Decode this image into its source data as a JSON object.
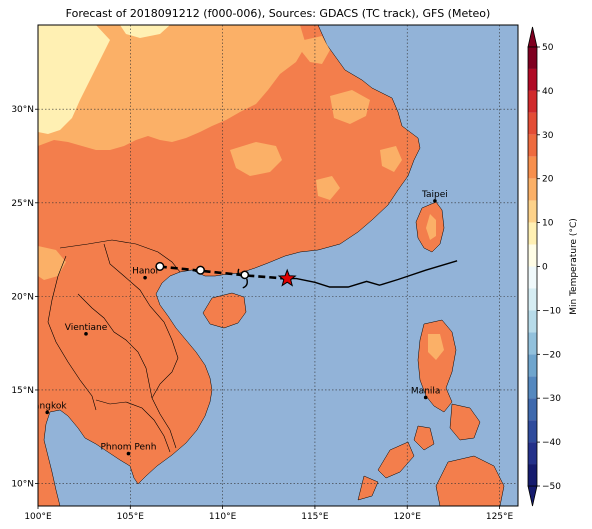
{
  "title": "Forecast of 2018091212 (f000-006), Sources: GDACS (TC track), GFS (Meteo)",
  "map": {
    "lon_range": [
      100,
      126
    ],
    "lat_range": [
      8.8,
      34.5
    ],
    "lon_ticks": [
      {
        "value": 100,
        "label": "100°E"
      },
      {
        "value": 105,
        "label": "105°E"
      },
      {
        "value": 110,
        "label": "110°E"
      },
      {
        "value": 115,
        "label": "115°E"
      },
      {
        "value": 120,
        "label": "120°E"
      },
      {
        "value": 125,
        "label": "125°E"
      }
    ],
    "lat_ticks": [
      {
        "value": 10,
        "label": "10°N"
      },
      {
        "value": 15,
        "label": "15°N"
      },
      {
        "value": 20,
        "label": "20°N"
      },
      {
        "value": 25,
        "label": "25°N"
      },
      {
        "value": 30,
        "label": "30°N"
      }
    ],
    "gridlines": true,
    "ocean_color": "#92b3d8"
  },
  "cities": [
    {
      "name": "Hanoi",
      "lon": 105.8,
      "lat": 21.0
    },
    {
      "name": "Vientiane",
      "lon": 102.6,
      "lat": 18.0
    },
    {
      "name": "Bangkok",
      "lon": 100.5,
      "lat": 13.8
    },
    {
      "name": "Phnom Penh",
      "lon": 104.9,
      "lat": 11.6
    },
    {
      "name": "Manila",
      "lon": 121.0,
      "lat": 14.6
    },
    {
      "name": "Taipei",
      "lon": 121.5,
      "lat": 25.1
    }
  ],
  "track": {
    "observed": [
      [
        122.7,
        21.9
      ],
      [
        121.0,
        21.4
      ],
      [
        119.5,
        20.9
      ],
      [
        118.5,
        20.6
      ],
      [
        117.8,
        20.8
      ],
      [
        116.8,
        20.5
      ],
      [
        115.8,
        20.5
      ],
      [
        115.0,
        20.75
      ],
      [
        114.0,
        20.95
      ],
      [
        113.5,
        20.95
      ]
    ],
    "forecast": [
      [
        113.5,
        20.95
      ],
      [
        111.5,
        21.1
      ],
      [
        109.5,
        21.3
      ],
      [
        108.0,
        21.45
      ],
      [
        106.5,
        21.6
      ]
    ],
    "current": {
      "lon": 113.5,
      "lat": 20.95,
      "symbol": "star"
    },
    "forecast_points": [
      {
        "lon": 111.2,
        "lat": 21.15,
        "symbol": "typhoon"
      },
      {
        "lon": 108.8,
        "lat": 21.4,
        "symbol": "circle"
      },
      {
        "lon": 106.6,
        "lat": 21.6,
        "symbol": "circle"
      }
    ]
  },
  "colorbar": {
    "label": "Min Temperature (°C)",
    "min": -50,
    "max": 50,
    "tick_labels": [
      "50",
      "40",
      "30",
      "20",
      "10",
      "0",
      "−10",
      "−20",
      "−30",
      "−40",
      "−50"
    ],
    "levels": [
      {
        "from": 45,
        "to": 50,
        "color": "#7f0020"
      },
      {
        "from": 40,
        "to": 45,
        "color": "#b00a25"
      },
      {
        "from": 35,
        "to": 40,
        "color": "#d02a2c"
      },
      {
        "from": 30,
        "to": 35,
        "color": "#e34d36"
      },
      {
        "from": 25,
        "to": 30,
        "color": "#ee6b3f"
      },
      {
        "from": 20,
        "to": 25,
        "color": "#f78f4d"
      },
      {
        "from": 15,
        "to": 20,
        "color": "#fbb067"
      },
      {
        "from": 10,
        "to": 15,
        "color": "#fdd28a"
      },
      {
        "from": 5,
        "to": 10,
        "color": "#fff0b3"
      },
      {
        "from": 0,
        "to": 5,
        "color": "#fffde6"
      },
      {
        "from": -5,
        "to": 0,
        "color": "#f0f9fb"
      },
      {
        "from": -10,
        "to": -5,
        "color": "#d6edf3"
      },
      {
        "from": -15,
        "to": -10,
        "color": "#b7dbe9"
      },
      {
        "from": -20,
        "to": -15,
        "color": "#92c1dc"
      },
      {
        "from": -25,
        "to": -20,
        "color": "#6fa5cd"
      },
      {
        "from": -30,
        "to": -25,
        "color": "#5488bf"
      },
      {
        "from": -35,
        "to": -30,
        "color": "#3e69ad"
      },
      {
        "from": -40,
        "to": -35,
        "color": "#2f4b9c"
      },
      {
        "from": -45,
        "to": -40,
        "color": "#24318a"
      },
      {
        "from": -50,
        "to": -45,
        "color": "#151b6e"
      }
    ]
  }
}
